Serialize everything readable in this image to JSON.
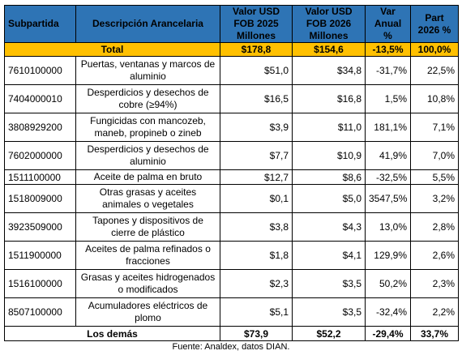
{
  "table": {
    "headers": {
      "subpartida": "Subpartida",
      "descripcion": "Descripción Arancelaria",
      "fob2025": "Valor USD FOB 2025 Millones",
      "fob2026": "Valor USD FOB 2026 Millones",
      "var": "Var Anual %",
      "part": "Part 2026 %"
    },
    "total": {
      "label": "Total",
      "fob2025": "$178,8",
      "fob2026": "$154,6",
      "var": "-13,5%",
      "part": "100,0%"
    },
    "rows": [
      {
        "code": "7610100000",
        "desc": "Puertas, ventanas y marcos de aluminio",
        "fob2025": "$51,0",
        "fob2026": "$34,8",
        "var": "-31,7%",
        "part": "22,5%"
      },
      {
        "code": "7404000010",
        "desc": "Desperdicios y desechos de cobre (≥94%)",
        "fob2025": "$16,5",
        "fob2026": "$16,8",
        "var": "1,5%",
        "part": "10,8%"
      },
      {
        "code": "3808929200",
        "desc": "Fungicidas con mancozeb, maneb, propineb o zineb",
        "fob2025": "$3,9",
        "fob2026": "$11,0",
        "var": "181,1%",
        "part": "7,1%"
      },
      {
        "code": "7602000000",
        "desc": "Desperdicios y desechos de aluminio",
        "fob2025": "$7,7",
        "fob2026": "$10,9",
        "var": "41,9%",
        "part": "7,0%"
      },
      {
        "code": "1511100000",
        "desc": "Aceite de palma en bruto",
        "fob2025": "$12,7",
        "fob2026": "$8,6",
        "var": "-32,5%",
        "part": "5,5%"
      },
      {
        "code": "1518009000",
        "desc": "Otras grasas y aceites animales o vegetales",
        "fob2025": "$0,1",
        "fob2026": "$5,0",
        "var": "3547,5%",
        "part": "3,2%"
      },
      {
        "code": "3923509000",
        "desc": "Tapones y dispositivos de cierre de plástico",
        "fob2025": "$3,8",
        "fob2026": "$4,3",
        "var": "13,0%",
        "part": "2,8%"
      },
      {
        "code": "1511900000",
        "desc": "Aceites de palma refinados o fracciones",
        "fob2025": "$1,8",
        "fob2026": "$4,1",
        "var": "129,9%",
        "part": "2,6%"
      },
      {
        "code": "1516100000",
        "desc": "Grasas y aceites hidrogenados o modificados",
        "fob2025": "$2,3",
        "fob2026": "$3,5",
        "var": "50,2%",
        "part": "2,3%"
      },
      {
        "code": "8507100000",
        "desc": "Acumuladores eléctricos de plomo",
        "fob2025": "$5,1",
        "fob2026": "$3,5",
        "var": "-32,4%",
        "part": "2,2%"
      }
    ],
    "footer": {
      "label": "Los demás",
      "fob2025": "$73,9",
      "fob2026": "$52,2",
      "var": "-29,4%",
      "part": "33,7%"
    }
  },
  "source": "Fuente: Analdex, datos DIAN.",
  "colors": {
    "header_bg": "#2e74b5",
    "total_bg": "#ffc000"
  }
}
